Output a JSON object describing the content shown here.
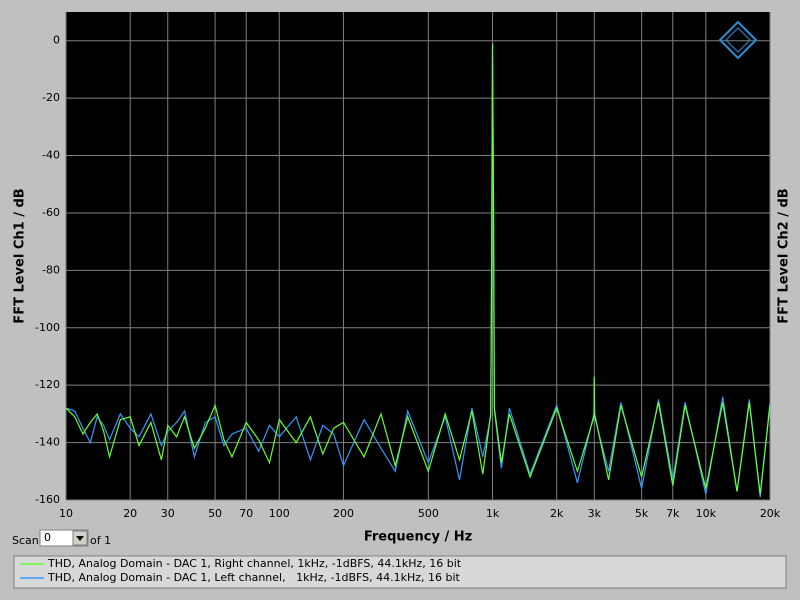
{
  "chart_data": {
    "type": "line",
    "ylabel": "FFT Level Ch1 / dB",
    "y2label": "FFT Level Ch2 / dB",
    "xlabel": "Frequency / Hz",
    "xscale": "log",
    "grid": true,
    "xlim": [
      10,
      20000
    ],
    "ylim": [
      -160,
      10
    ],
    "xticks": [
      10,
      20,
      30,
      50,
      70,
      100,
      200,
      500,
      {
        "value": 1000,
        "label": "1k"
      },
      {
        "value": 2000,
        "label": "2k"
      },
      {
        "value": 3000,
        "label": "3k"
      },
      {
        "value": 5000,
        "label": "5k"
      },
      {
        "value": 7000,
        "label": "7k"
      },
      {
        "value": 10000,
        "label": "10k"
      },
      {
        "value": 20000,
        "label": "20k"
      }
    ],
    "yticks": [
      0,
      -20,
      -40,
      -60,
      -80,
      -100,
      -120,
      -140,
      -160
    ],
    "x": [
      10,
      11,
      12,
      13,
      14,
      15,
      16,
      18,
      20,
      22,
      25,
      28,
      30,
      33,
      36,
      40,
      45,
      50,
      55,
      60,
      70,
      80,
      90,
      100,
      120,
      140,
      160,
      180,
      200,
      250,
      300,
      350,
      400,
      500,
      600,
      700,
      800,
      900,
      980,
      990,
      1000,
      1010,
      1020,
      1100,
      1200,
      1500,
      2000,
      2500,
      2990,
      3000,
      3010,
      3500,
      4000,
      5000,
      6000,
      7000,
      8000,
      10000,
      12000,
      14000,
      16000,
      18000,
      20000
    ],
    "series": [
      {
        "name": "THD, Analog Domain - DAC 1, Right channel, 1kHz, -1dBFS, 44.1kHz, 16 bit",
        "color": "#66ff33",
        "values": [
          -128,
          -131,
          -137,
          -133,
          -130,
          -136,
          -145,
          -132,
          -131,
          -141,
          -133,
          -146,
          -134,
          -138,
          -131,
          -142,
          -135,
          -127,
          -139,
          -145,
          -133,
          -139,
          -147,
          -132,
          -140,
          -131,
          -144,
          -135,
          -133,
          -145,
          -130,
          -148,
          -131,
          -150,
          -130,
          -146,
          -129,
          -151,
          -130,
          -80,
          -1,
          -57,
          -128,
          -147,
          -130,
          -152,
          -128,
          -150,
          -131,
          -117,
          -130,
          -153,
          -127,
          -152,
          -126,
          -155,
          -127,
          -156,
          -126,
          -157,
          -126,
          -158,
          -127
        ]
      },
      {
        "name": "THD, Analog Domain - DAC 1, Left channel,   1kHz, -1dBFS, 44.1kHz, 16 bit",
        "color": "#3399ff",
        "values": [
          -128,
          -129,
          -135,
          -140,
          -131,
          -134,
          -139,
          -130,
          -135,
          -138,
          -130,
          -141,
          -136,
          -133,
          -129,
          -145,
          -133,
          -131,
          -141,
          -137,
          -135,
          -143,
          -134,
          -138,
          -131,
          -146,
          -134,
          -137,
          -148,
          -132,
          -142,
          -150,
          -129,
          -147,
          -131,
          -153,
          -128,
          -145,
          -131,
          -82,
          -2,
          -60,
          -129,
          -149,
          -128,
          -151,
          -127,
          -154,
          -130,
          -119,
          -131,
          -150,
          -126,
          -156,
          -125,
          -153,
          -126,
          -158,
          -124,
          -157,
          -125,
          -159,
          -126
        ]
      }
    ]
  },
  "scan": {
    "label": "Scan",
    "value": "0",
    "of": "of 1"
  }
}
